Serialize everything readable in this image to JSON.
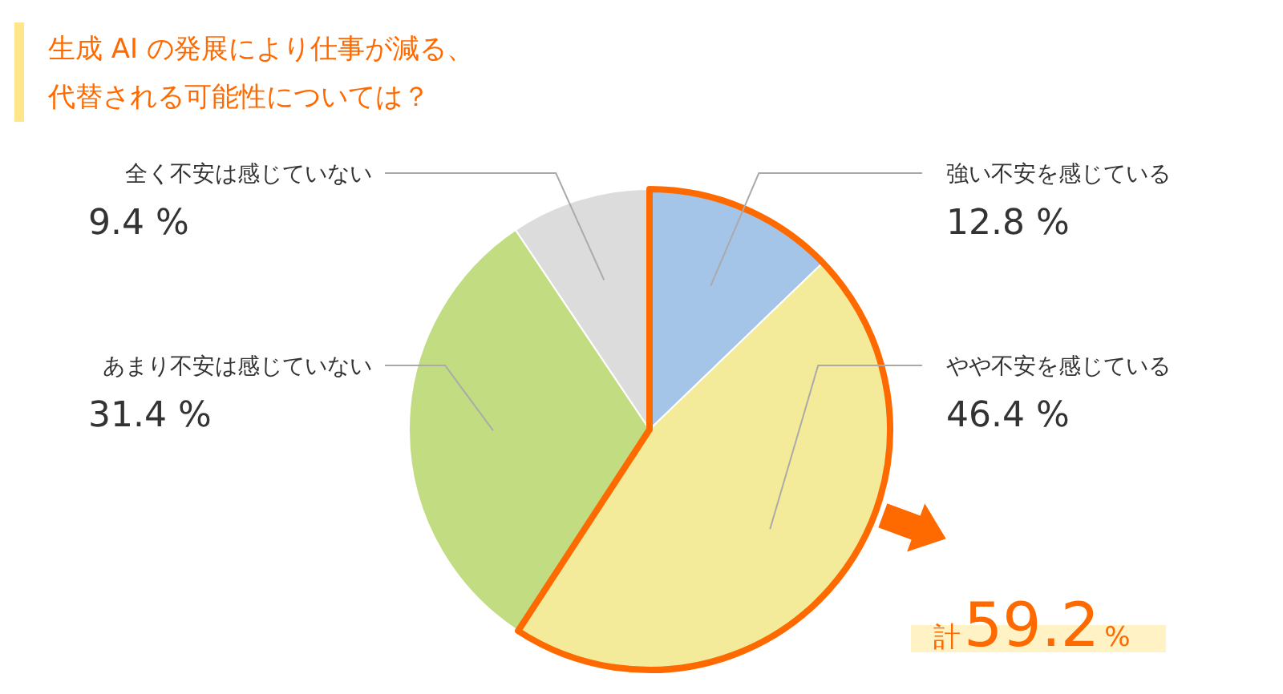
{
  "chart_data": {
    "type": "pie",
    "title": "生成 AI の発展により仕事が減る、代替される可能性については？",
    "categories": [
      "強い不安を感じている",
      "やや不安を感じている",
      "あまり不安は感じていない",
      "全く不安は感じていない"
    ],
    "values": [
      12.8,
      46.4,
      31.4,
      9.4
    ],
    "value_labels": [
      "12.8 %",
      "46.4 %",
      "31.4 %",
      "9.4 %"
    ],
    "colors": [
      "#a4c4e8",
      "#f4eb9a",
      "#c2dc82",
      "#dcdcdc"
    ],
    "annotations": [
      "計59.2%"
    ]
  }
}
